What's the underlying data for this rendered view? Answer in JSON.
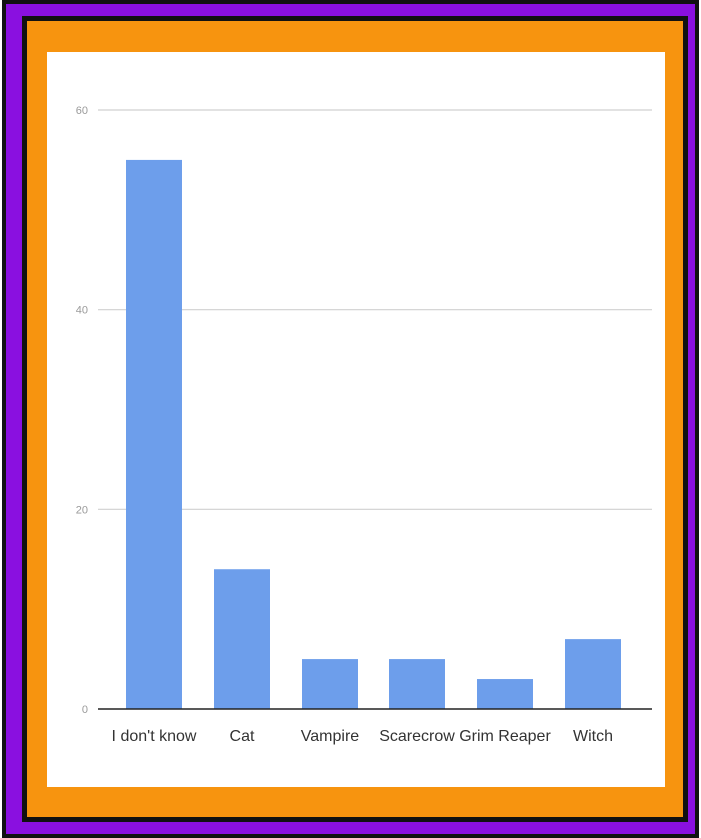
{
  "colors": {
    "bar": "#6d9eeb",
    "grid": "#d0d0d0",
    "axis": "#222222",
    "frame_purple": "#8a10e0",
    "frame_orange": "#f7940f",
    "frame_black": "#111111"
  },
  "chart_data": {
    "type": "bar",
    "title": "",
    "xlabel": "",
    "ylabel": "",
    "categories": [
      "I don't know",
      "Cat",
      "Vampire",
      "Scarecrow",
      "Grim Reaper",
      "Witch"
    ],
    "values": [
      55,
      14,
      5,
      5,
      3,
      7
    ],
    "ylim": [
      0,
      60
    ],
    "yticks": [
      0,
      20,
      40,
      60
    ],
    "grid": true,
    "legend": "none"
  }
}
